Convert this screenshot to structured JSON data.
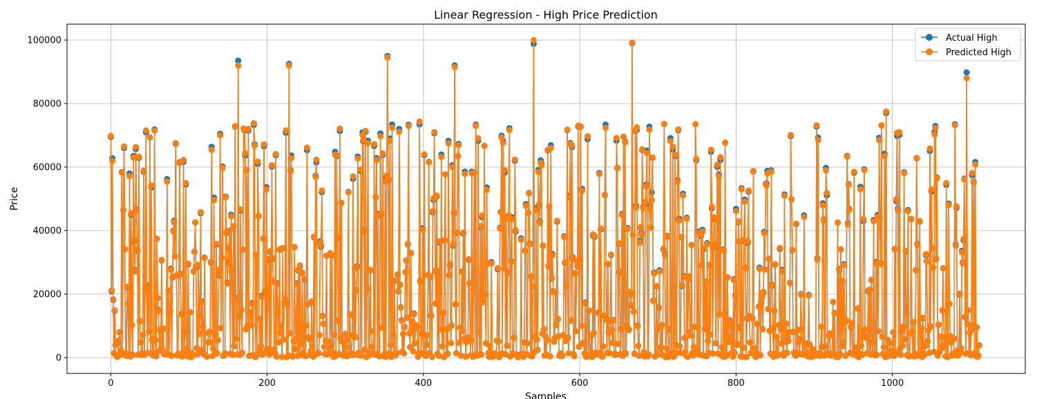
{
  "chart_data": {
    "type": "line",
    "title": "Linear Regression - High Price Prediction",
    "xlabel": "Samples",
    "ylabel": "Price",
    "xlim": [
      -56,
      1170
    ],
    "ylim": [
      -5000,
      105000
    ],
    "xticks": [
      0,
      200,
      400,
      600,
      800,
      1000
    ],
    "yticks": [
      0,
      20000,
      40000,
      60000,
      80000,
      100000
    ],
    "grid": true,
    "legend_position": "top-right",
    "colors": {
      "actual": "#1f77b4",
      "predicted": "#ff7f0e"
    },
    "series": [
      {
        "name": "Actual High",
        "marker": "circle",
        "n_points": 1112,
        "key_points": [
          {
            "x": 0,
            "y": 69500
          },
          {
            "x": 2,
            "y": 62800
          },
          {
            "x": 17,
            "y": 66000
          },
          {
            "x": 29,
            "y": 63500
          },
          {
            "x": 140,
            "y": 70500
          },
          {
            "x": 163,
            "y": 93500
          },
          {
            "x": 176,
            "y": 71500
          },
          {
            "x": 228,
            "y": 92500
          },
          {
            "x": 354,
            "y": 95000
          },
          {
            "x": 440,
            "y": 92000
          },
          {
            "x": 541,
            "y": 98800
          },
          {
            "x": 667,
            "y": 99000
          },
          {
            "x": 692,
            "y": 52000
          },
          {
            "x": 748,
            "y": 73500
          },
          {
            "x": 992,
            "y": 77000
          },
          {
            "x": 1095,
            "y": 89800
          }
        ]
      },
      {
        "name": "Predicted High",
        "marker": "circle",
        "n_points": 1112,
        "key_points": [
          {
            "x": 0,
            "y": 69800
          },
          {
            "x": 2,
            "y": 62000
          },
          {
            "x": 17,
            "y": 66500
          },
          {
            "x": 29,
            "y": 63000
          },
          {
            "x": 140,
            "y": 70000
          },
          {
            "x": 163,
            "y": 92000
          },
          {
            "x": 176,
            "y": 72000
          },
          {
            "x": 228,
            "y": 92000
          },
          {
            "x": 354,
            "y": 94500
          },
          {
            "x": 440,
            "y": 91500
          },
          {
            "x": 541,
            "y": 100000
          },
          {
            "x": 667,
            "y": 99200
          },
          {
            "x": 692,
            "y": 49500
          },
          {
            "x": 748,
            "y": 73500
          },
          {
            "x": 992,
            "y": 77500
          },
          {
            "x": 1095,
            "y": 88000
          }
        ]
      }
    ]
  }
}
